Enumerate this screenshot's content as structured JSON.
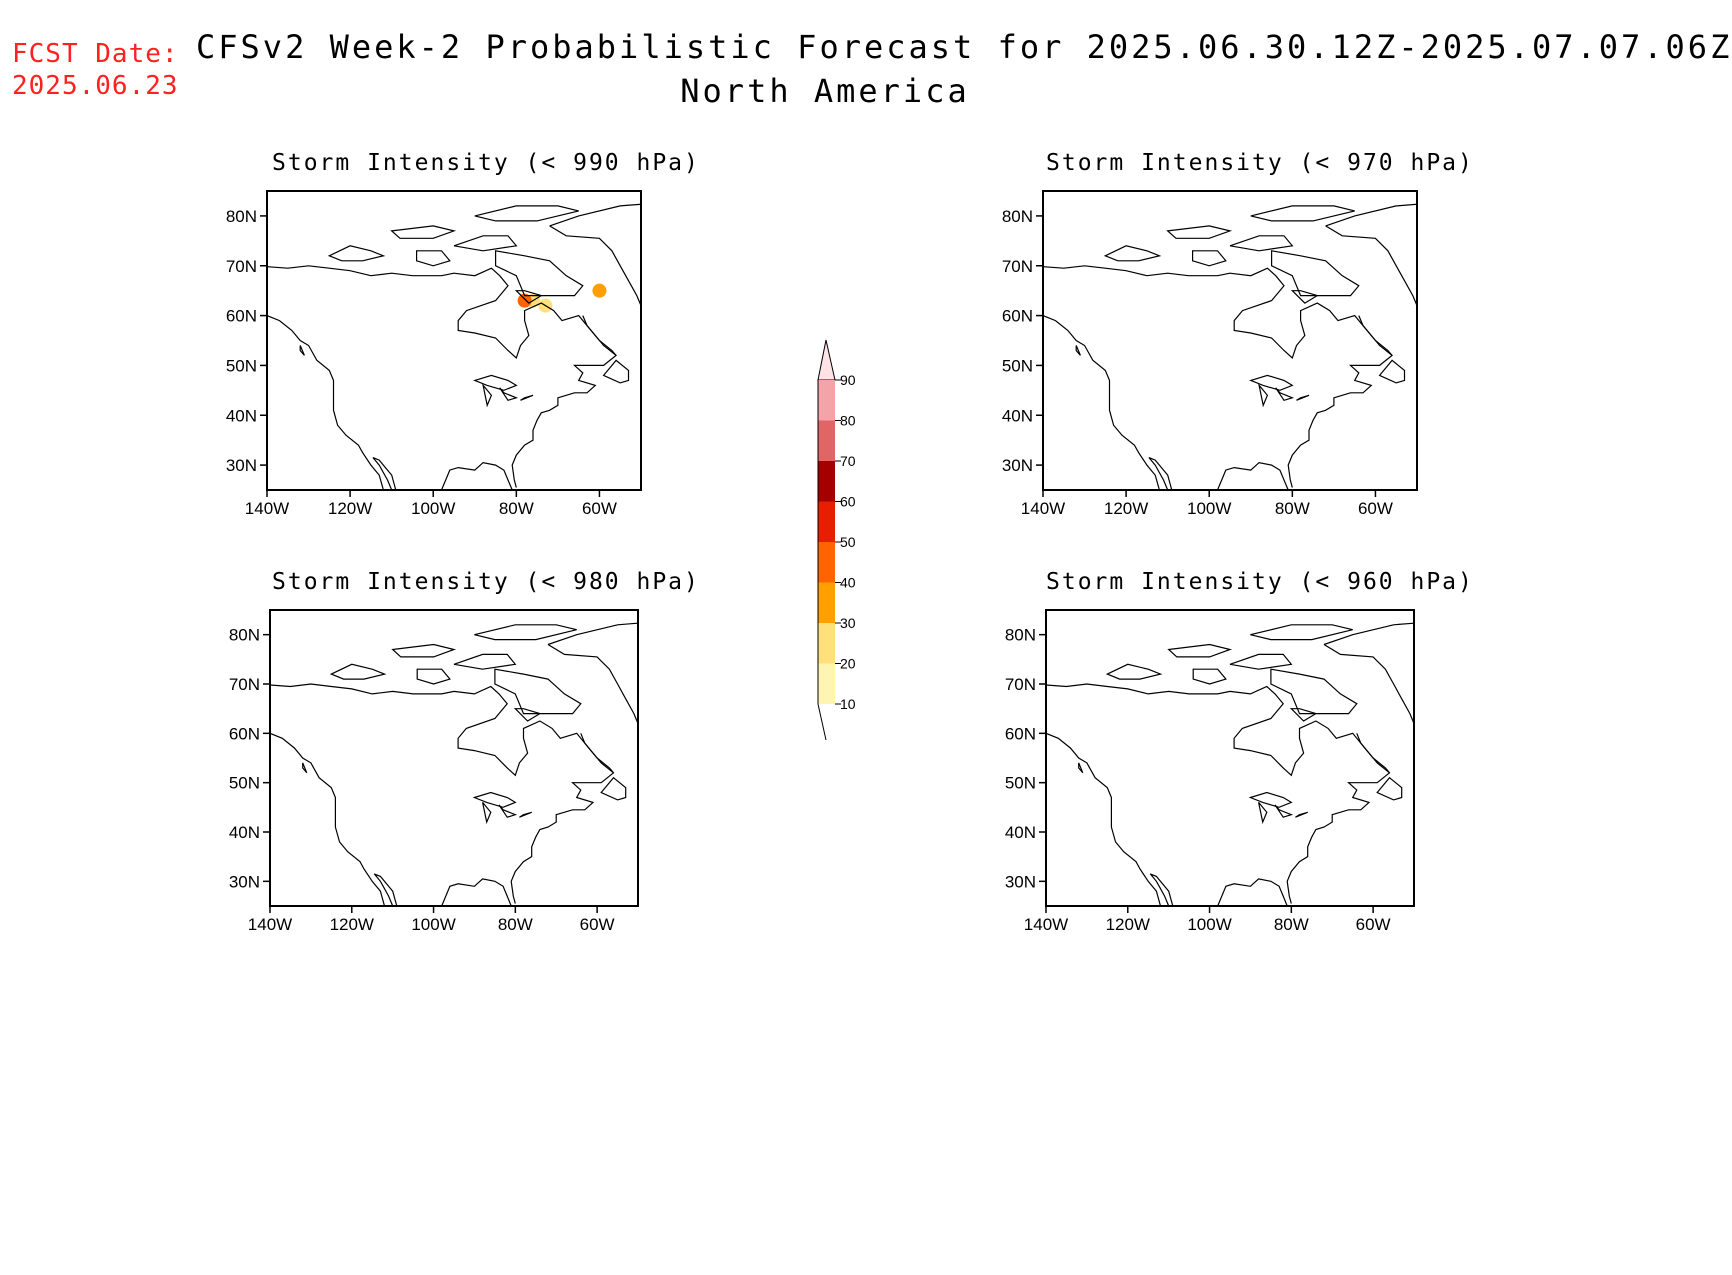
{
  "header": {
    "fcst_label": "FCST Date:",
    "fcst_date": "2025.06.23",
    "title": "CFSv2 Week-2 Probabilistic Forecast for 2025.06.30.12Z-2025.07.07.06Z",
    "subtitle": "North America"
  },
  "panels": [
    {
      "title": "Storm Intensity (< 990 hPa)"
    },
    {
      "title": "Storm Intensity (< 970 hPa)"
    },
    {
      "title": "Storm Intensity (< 980 hPa)"
    },
    {
      "title": "Storm Intensity (< 960 hPa)"
    }
  ],
  "axes": {
    "lat_labels": [
      "80N",
      "70N",
      "60N",
      "50N",
      "40N",
      "30N"
    ],
    "lon_labels": [
      "140W",
      "120W",
      "100W",
      "80W",
      "60W"
    ],
    "lat_values": [
      80,
      70,
      60,
      50,
      40,
      30
    ],
    "lon_values": [
      -140,
      -120,
      -100,
      -80,
      -60
    ],
    "lat_range": [
      25,
      85
    ],
    "lon_range": [
      -140,
      -50
    ]
  },
  "colorbar": {
    "levels": [
      "10",
      "20",
      "30",
      "40",
      "50",
      "60",
      "70",
      "80",
      "90"
    ],
    "colors": [
      "#fff5b3",
      "#ffe07a",
      "#ff9f00",
      "#ff6400",
      "#e81e00",
      "#a50000",
      "#e06666",
      "#f4a3a8",
      "#fde3e5"
    ]
  },
  "hotspots": [
    {
      "panel": 0,
      "lon": -76,
      "lat": 63,
      "color": "#ffe07a"
    },
    {
      "panel": 0,
      "lon": -73,
      "lat": 62,
      "color": "#ffe07a"
    },
    {
      "panel": 0,
      "lon": -78,
      "lat": 63,
      "color": "#ff6400"
    },
    {
      "panel": 0,
      "lon": -60,
      "lat": 65,
      "color": "#ff9f00"
    }
  ]
}
